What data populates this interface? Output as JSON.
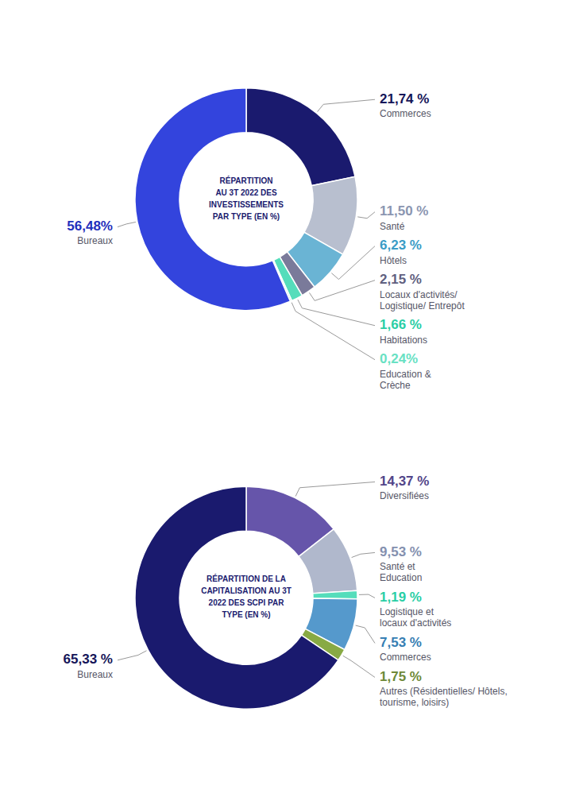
{
  "chart_data": [
    {
      "type": "donut",
      "title": "RÉPARTITION\nAU 3T 2022 DES\nINVESTISSEMENTS\nPAR TYPE (EN %)",
      "categories": [
        "Commerces",
        "Santé",
        "Hôtels",
        "Locaux d'activités/\nLogistique/ Entrepôt",
        "Habitations",
        "Education &\nCrèche",
        "Bureaux"
      ],
      "values": [
        21.74,
        11.5,
        6.23,
        2.15,
        1.66,
        0.24,
        56.48
      ],
      "value_labels": [
        "21,74 %",
        "11,50 %",
        "6,23 %",
        "2,15 %",
        "1,66 %",
        "0,24%",
        "56,48%"
      ],
      "colors": [
        "#1a1a6e",
        "#b8bfcf",
        "#6ab4d4",
        "#7a7a9a",
        "#55ddbb",
        "#aaeedd",
        "#3344dd"
      ],
      "data_labels": true
    },
    {
      "type": "donut",
      "title": "RÉPARTITION DE LA\nCAPITALISATION AU 3T\n2022 DES SCPI PAR\nTYPE (EN %)",
      "categories": [
        "Diversifiées",
        "Santé et\nEducation",
        "Logistique et\nlocaux d'activités",
        "Commerces",
        "Autres (Résidentielles/ Hôtels,\ntourisme, loisirs)",
        "Bureaux"
      ],
      "values": [
        14.37,
        9.53,
        1.19,
        7.53,
        1.75,
        65.33
      ],
      "value_labels": [
        "14,37 %",
        "9,53 %",
        "1,19 %",
        "7,53 %",
        "1,75 %",
        "65,33 %"
      ],
      "colors": [
        "#6655aa",
        "#b0b8cc",
        "#55ddbb",
        "#5599cc",
        "#88aa44",
        "#1a1a6e"
      ],
      "data_labels": true
    }
  ]
}
